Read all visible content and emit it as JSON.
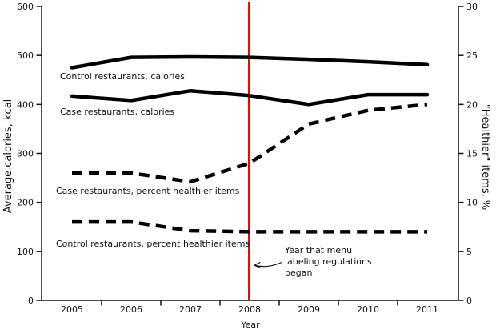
{
  "chart_data": {
    "type": "line",
    "title": "",
    "xlabel": "Year",
    "ylabel_left": "Average calories, kcal",
    "ylabel_right": "\"Healthier\" items, %",
    "x": [
      2005,
      2006,
      2007,
      2008,
      2009,
      2010,
      2011
    ],
    "ylim_left": [
      0,
      600
    ],
    "ylim_right": [
      0,
      30
    ],
    "yticks_left": [
      0,
      100,
      200,
      300,
      400,
      500,
      600
    ],
    "yticks_right": [
      0,
      5,
      10,
      15,
      20,
      25,
      30
    ],
    "grid": false,
    "legend_position": "inline-labels",
    "line_color": "#000000",
    "series": [
      {
        "name": "Control restaurants, calories",
        "axis": "left",
        "style": "solid",
        "values": [
          475,
          496,
          497,
          496,
          492,
          487,
          481
        ]
      },
      {
        "name": "Case restaurants, calories",
        "axis": "left",
        "style": "solid",
        "values": [
          417,
          408,
          428,
          418,
          400,
          420,
          420
        ]
      },
      {
        "name": "Case restaurants, percent healthier items",
        "axis": "right",
        "style": "dashed",
        "values": [
          13,
          13,
          12.1,
          14,
          18,
          19.4,
          20
        ]
      },
      {
        "name": "Control restaurants, percent healthier items",
        "axis": "right",
        "style": "dashed",
        "values": [
          8,
          8,
          7.1,
          7,
          7,
          7,
          7
        ]
      }
    ],
    "reference_line": {
      "x": 2008,
      "color": "#fe0000",
      "label": "Year that menu\nlabeling regulations\nbegan"
    }
  }
}
